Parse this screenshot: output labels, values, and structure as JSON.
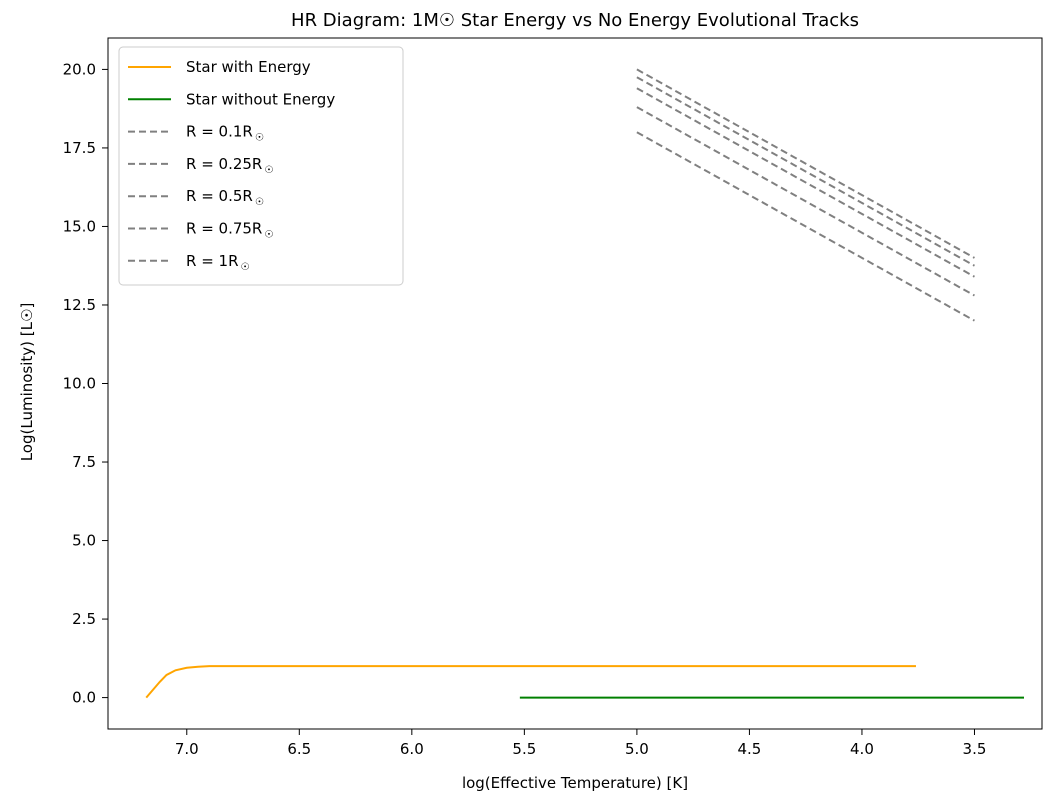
{
  "chart_data": {
    "type": "line",
    "title": "HR Diagram: 1M☉ Star Energy vs No Energy Evolutional Tracks",
    "xlabel": "log(Effective Temperature) [K]",
    "ylabel": "Log(Luminosity) [L☉]",
    "x_inverted": true,
    "xlim": [
      7.35,
      3.2
    ],
    "ylim": [
      -1.0,
      21.0
    ],
    "xticks": [
      7.0,
      6.5,
      6.0,
      5.5,
      5.0,
      4.5,
      4.0,
      3.5
    ],
    "xtick_labels": [
      "7.0",
      "6.5",
      "6.0",
      "5.5",
      "5.0",
      "4.5",
      "4.0",
      "3.5"
    ],
    "yticks": [
      0.0,
      2.5,
      5.0,
      7.5,
      10.0,
      12.5,
      15.0,
      17.5,
      20.0
    ],
    "ytick_labels": [
      "0.0",
      "2.5",
      "5.0",
      "7.5",
      "10.0",
      "12.5",
      "15.0",
      "17.5",
      "20.0"
    ],
    "legend_position": "upper-left",
    "series": [
      {
        "name": "Star with Energy",
        "color": "#ffa500",
        "style": "solid",
        "points": [
          [
            7.18,
            0.0
          ],
          [
            7.15,
            0.25
          ],
          [
            7.12,
            0.5
          ],
          [
            7.09,
            0.72
          ],
          [
            7.05,
            0.87
          ],
          [
            7.0,
            0.95
          ],
          [
            6.95,
            0.98
          ],
          [
            6.9,
            1.0
          ],
          [
            6.5,
            1.0
          ],
          [
            6.0,
            1.0
          ],
          [
            5.0,
            1.0
          ],
          [
            4.0,
            1.0
          ],
          [
            3.76,
            1.0
          ]
        ]
      },
      {
        "name": "Star without Energy",
        "color": "#008000",
        "style": "solid",
        "points": [
          [
            5.52,
            0.0
          ],
          [
            3.28,
            0.0
          ]
        ]
      },
      {
        "name": "R = 0.1R",
        "name_sub": "☉",
        "color": "#808080",
        "style": "dashed",
        "points": [
          [
            5.0,
            18.0
          ],
          [
            3.5,
            12.0
          ]
        ]
      },
      {
        "name": "R = 0.25R",
        "name_sub": "☉",
        "color": "#808080",
        "style": "dashed",
        "points": [
          [
            5.0,
            18.8
          ],
          [
            3.5,
            12.8
          ]
        ]
      },
      {
        "name": "R = 0.5R",
        "name_sub": "☉",
        "color": "#808080",
        "style": "dashed",
        "points": [
          [
            5.0,
            19.4
          ],
          [
            3.5,
            13.4
          ]
        ]
      },
      {
        "name": "R = 0.75R",
        "name_sub": "☉",
        "color": "#808080",
        "style": "dashed",
        "points": [
          [
            5.0,
            19.75
          ],
          [
            3.5,
            13.75
          ]
        ]
      },
      {
        "name": "R = 1R",
        "name_sub": "☉",
        "color": "#808080",
        "style": "dashed",
        "points": [
          [
            5.0,
            20.0
          ],
          [
            3.5,
            14.0
          ]
        ]
      }
    ]
  }
}
